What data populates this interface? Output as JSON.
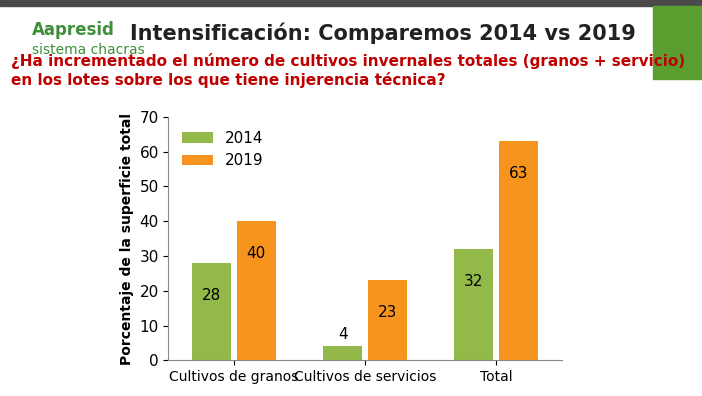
{
  "chart_data": {
    "type": "bar",
    "title": "Intensificación: Comparemos 2014 vs 2019",
    "subtitle": "¿Ha incrementado el número de cultivos invernales totales (granos + servicio) en los lotes sobre los que tiene injerencia técnica?",
    "annotations": [
      "Aapresid",
      "sistema chacras"
    ],
    "ylabel": "Porcentaje de la superficie total",
    "categories": [
      "Cultivos de granos",
      "Cultivos de servicios",
      "Total"
    ],
    "series": [
      {
        "name": "2014",
        "color": "#92b94a",
        "values": [
          28,
          4,
          32
        ]
      },
      {
        "name": "2019",
        "color": "#f7941d",
        "values": [
          40,
          23,
          63
        ]
      }
    ],
    "ylim": [
      0,
      70
    ],
    "yticks": [
      0,
      10,
      20,
      30,
      40,
      50,
      60,
      70
    ],
    "grid": false,
    "legend": "upper left",
    "data_labels": true
  }
}
